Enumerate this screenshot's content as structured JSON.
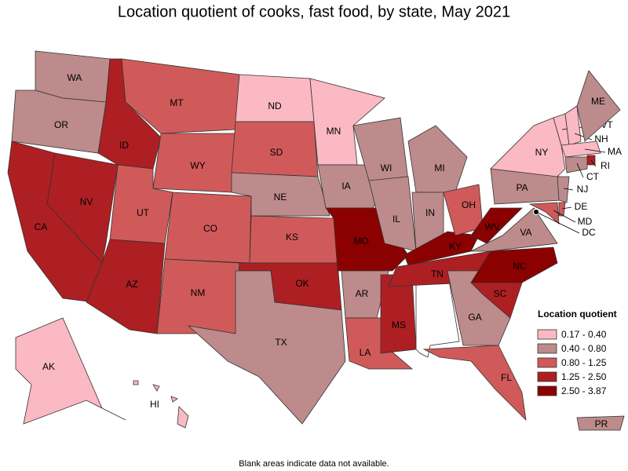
{
  "title": "Location quotient of cooks, fast food, by state, May 2021",
  "legend": {
    "title": "Location quotient",
    "items": [
      {
        "label": "0.17 - 0.40",
        "color": "#fbb9c3"
      },
      {
        "label": "0.40 - 0.80",
        "color": "#bd8b8b"
      },
      {
        "label": "0.80 - 1.25",
        "color": "#d05a5a"
      },
      {
        "label": "1.25 - 2.50",
        "color": "#ad1f22"
      },
      {
        "label": "2.50 - 3.87",
        "color": "#8b0000"
      }
    ]
  },
  "states": [
    {
      "label": "WA",
      "class": 1
    },
    {
      "label": "OR",
      "class": 1
    },
    {
      "label": "CA",
      "class": 3
    },
    {
      "label": "NV",
      "class": 3
    },
    {
      "label": "ID",
      "class": 3
    },
    {
      "label": "MT",
      "class": 2
    },
    {
      "label": "WY",
      "class": 2
    },
    {
      "label": "UT",
      "class": 2
    },
    {
      "label": "AZ",
      "class": 3
    },
    {
      "label": "CO",
      "class": 2
    },
    {
      "label": "NM",
      "class": 2
    },
    {
      "label": "ND",
      "class": 0
    },
    {
      "label": "SD",
      "class": 2
    },
    {
      "label": "NE",
      "class": 1
    },
    {
      "label": "KS",
      "class": 2
    },
    {
      "label": "OK",
      "class": 3
    },
    {
      "label": "TX",
      "class": 1
    },
    {
      "label": "MN",
      "class": 0
    },
    {
      "label": "IA",
      "class": 1
    },
    {
      "label": "MO",
      "class": 4
    },
    {
      "label": "AR",
      "class": 1
    },
    {
      "label": "LA",
      "class": 2
    },
    {
      "label": "WI",
      "class": 1
    },
    {
      "label": "IL",
      "class": 1
    },
    {
      "label": "MS",
      "class": 3
    },
    {
      "label": "MI",
      "class": 1
    },
    {
      "label": "IN",
      "class": 1
    },
    {
      "label": "KY",
      "class": 4
    },
    {
      "label": "TN",
      "class": 3
    },
    {
      "label": "OH",
      "class": 2
    },
    {
      "label": "WV",
      "class": 4
    },
    {
      "label": "GA",
      "class": 1
    },
    {
      "label": "FL",
      "class": 2
    },
    {
      "label": "SC",
      "class": 3
    },
    {
      "label": "NC",
      "class": 4
    },
    {
      "label": "VA",
      "class": 1
    },
    {
      "label": "PA",
      "class": 1
    },
    {
      "label": "NY",
      "class": 0
    },
    {
      "label": "VT",
      "class": 0
    },
    {
      "label": "NH",
      "class": 0
    },
    {
      "label": "ME",
      "class": 1
    },
    {
      "label": "MA",
      "class": 0
    },
    {
      "label": "RI",
      "class": 3
    },
    {
      "label": "CT",
      "class": 1
    },
    {
      "label": "NJ",
      "class": 1
    },
    {
      "label": "DE",
      "class": 2
    },
    {
      "label": "MD",
      "class": 2
    },
    {
      "label": "DC",
      "class": 4
    },
    {
      "label": "AK",
      "class": 0
    },
    {
      "label": "HI",
      "class": 0
    },
    {
      "label": "PR",
      "class": 1
    }
  ],
  "footnote": "Blank areas indicate data not available."
}
